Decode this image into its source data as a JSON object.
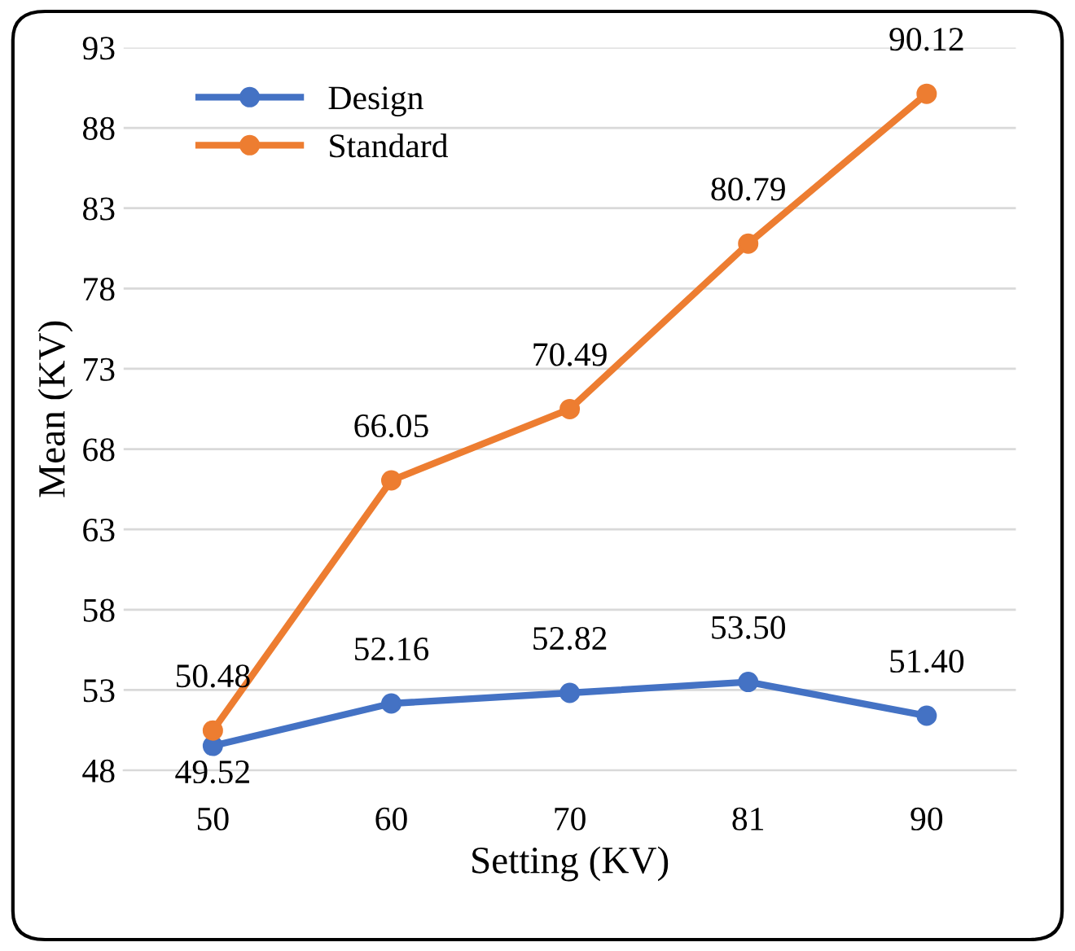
{
  "chart_data": {
    "type": "line",
    "xlabel": "Setting (KV)",
    "ylabel": "Mean (KV)",
    "categories": [
      "50",
      "60",
      "70",
      "81",
      "90"
    ],
    "series": [
      {
        "name": "Design",
        "color": "#4472c4",
        "values": [
          49.52,
          52.16,
          52.82,
          53.5,
          51.4
        ],
        "value_labels": [
          "49.52",
          "52.16",
          "52.82",
          "53.50",
          "51.40"
        ]
      },
      {
        "name": "Standard",
        "color": "#ed7d31",
        "values": [
          50.48,
          66.05,
          70.49,
          80.79,
          90.12
        ],
        "value_labels": [
          "50.48",
          "66.05",
          "70.49",
          "80.79",
          "90.12"
        ]
      }
    ],
    "ylim": [
      48,
      93
    ],
    "yticks": [
      48,
      53,
      58,
      63,
      68,
      73,
      78,
      83,
      88,
      93
    ],
    "grid": "y",
    "legend": "top left",
    "marker": "circle",
    "line_style": "solid"
  }
}
